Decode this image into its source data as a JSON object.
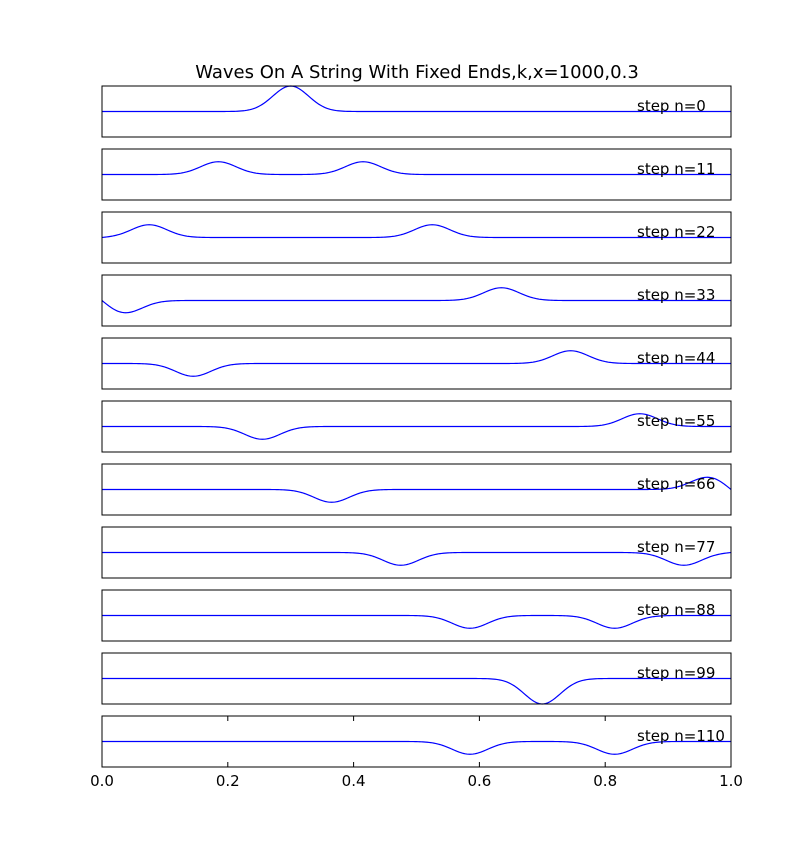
{
  "chart_data": {
    "type": "line",
    "title": "Waves On A String With Fixed Ends,k,x=1000,0.3",
    "xlabel": "",
    "ylabel": "",
    "xlim": [
      0.0,
      1.0
    ],
    "ylim": [
      -1.0,
      1.0
    ],
    "x_tick_labels": [
      "0.0",
      "0.2",
      "0.4",
      "0.6",
      "0.8",
      "1.0"
    ],
    "x_ticks": [
      0.0,
      0.2,
      0.4,
      0.6,
      0.8,
      1.0
    ],
    "line_color": "#0000ff",
    "pulse_width": 0.04,
    "grid": false,
    "panels": [
      {
        "label": "step n=0",
        "pulses": [
          {
            "center": 0.3,
            "amp": 1.0
          }
        ]
      },
      {
        "label": "step n=11",
        "pulses": [
          {
            "center": 0.185,
            "amp": 0.5
          },
          {
            "center": 0.415,
            "amp": 0.5
          }
        ]
      },
      {
        "label": "step n=22",
        "pulses": [
          {
            "center": 0.075,
            "amp": 0.5
          },
          {
            "center": 0.525,
            "amp": 0.5
          },
          {
            "center": -0.075,
            "amp": -0.5
          }
        ]
      },
      {
        "label": "step n=33",
        "pulses": [
          {
            "center": 0.035,
            "amp": -0.5
          },
          {
            "center": -0.035,
            "amp": 0.5
          },
          {
            "center": 0.635,
            "amp": 0.5
          }
        ]
      },
      {
        "label": "step n=44",
        "pulses": [
          {
            "center": 0.145,
            "amp": -0.5
          },
          {
            "center": 0.745,
            "amp": 0.5
          }
        ]
      },
      {
        "label": "step n=55",
        "pulses": [
          {
            "center": 0.255,
            "amp": -0.5
          },
          {
            "center": 0.855,
            "amp": 0.5
          }
        ]
      },
      {
        "label": "step n=66",
        "pulses": [
          {
            "center": 0.365,
            "amp": -0.5
          },
          {
            "center": 0.965,
            "amp": 0.5
          },
          {
            "center": 1.035,
            "amp": -0.5
          }
        ]
      },
      {
        "label": "step n=77",
        "pulses": [
          {
            "center": 0.475,
            "amp": -0.5
          },
          {
            "center": 0.925,
            "amp": -0.5
          },
          {
            "center": 1.075,
            "amp": 0.5
          }
        ]
      },
      {
        "label": "step n=88",
        "pulses": [
          {
            "center": 0.585,
            "amp": -0.5
          },
          {
            "center": 0.815,
            "amp": -0.5
          }
        ]
      },
      {
        "label": "step n=99",
        "pulses": [
          {
            "center": 0.7,
            "amp": -1.0
          }
        ]
      },
      {
        "label": "step n=110",
        "pulses": [
          {
            "center": 0.585,
            "amp": -0.5
          },
          {
            "center": 0.815,
            "amp": -0.5
          }
        ]
      }
    ]
  }
}
